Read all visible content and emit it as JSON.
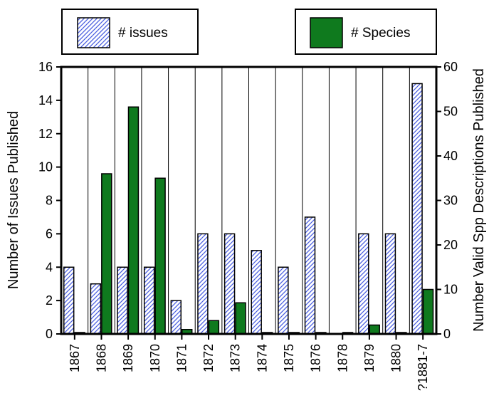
{
  "chart_data": {
    "type": "bar",
    "categories": [
      "1867",
      "1868",
      "1869",
      "1870",
      "1871",
      "1872",
      "1873",
      "1874",
      "1875",
      "1876",
      "1878",
      "1879",
      "1880",
      "?1881-7"
    ],
    "series": [
      {
        "name": "# issues",
        "axis": "left",
        "pattern": "diagonal-hatch-blue",
        "values": [
          4,
          3,
          4,
          4,
          2,
          6,
          6,
          5,
          4,
          7,
          0,
          6,
          6,
          15
        ]
      },
      {
        "name": "# Species",
        "axis": "right",
        "color": "#0f7a1e",
        "values": [
          0,
          36,
          51,
          35,
          1,
          3,
          7,
          0,
          0,
          0,
          0,
          2,
          0,
          10
        ]
      }
    ],
    "ylabel": "Number of Issues Published",
    "ylim": [
      0,
      16
    ],
    "yticks": [
      0,
      2,
      4,
      6,
      8,
      10,
      12,
      14,
      16
    ],
    "y2label": "Number Valid Spp Descriptions Published",
    "y2lim": [
      0,
      60
    ],
    "y2ticks": [
      0,
      10,
      20,
      30,
      40,
      50,
      60
    ],
    "grid": "vertical",
    "legend": "top"
  }
}
